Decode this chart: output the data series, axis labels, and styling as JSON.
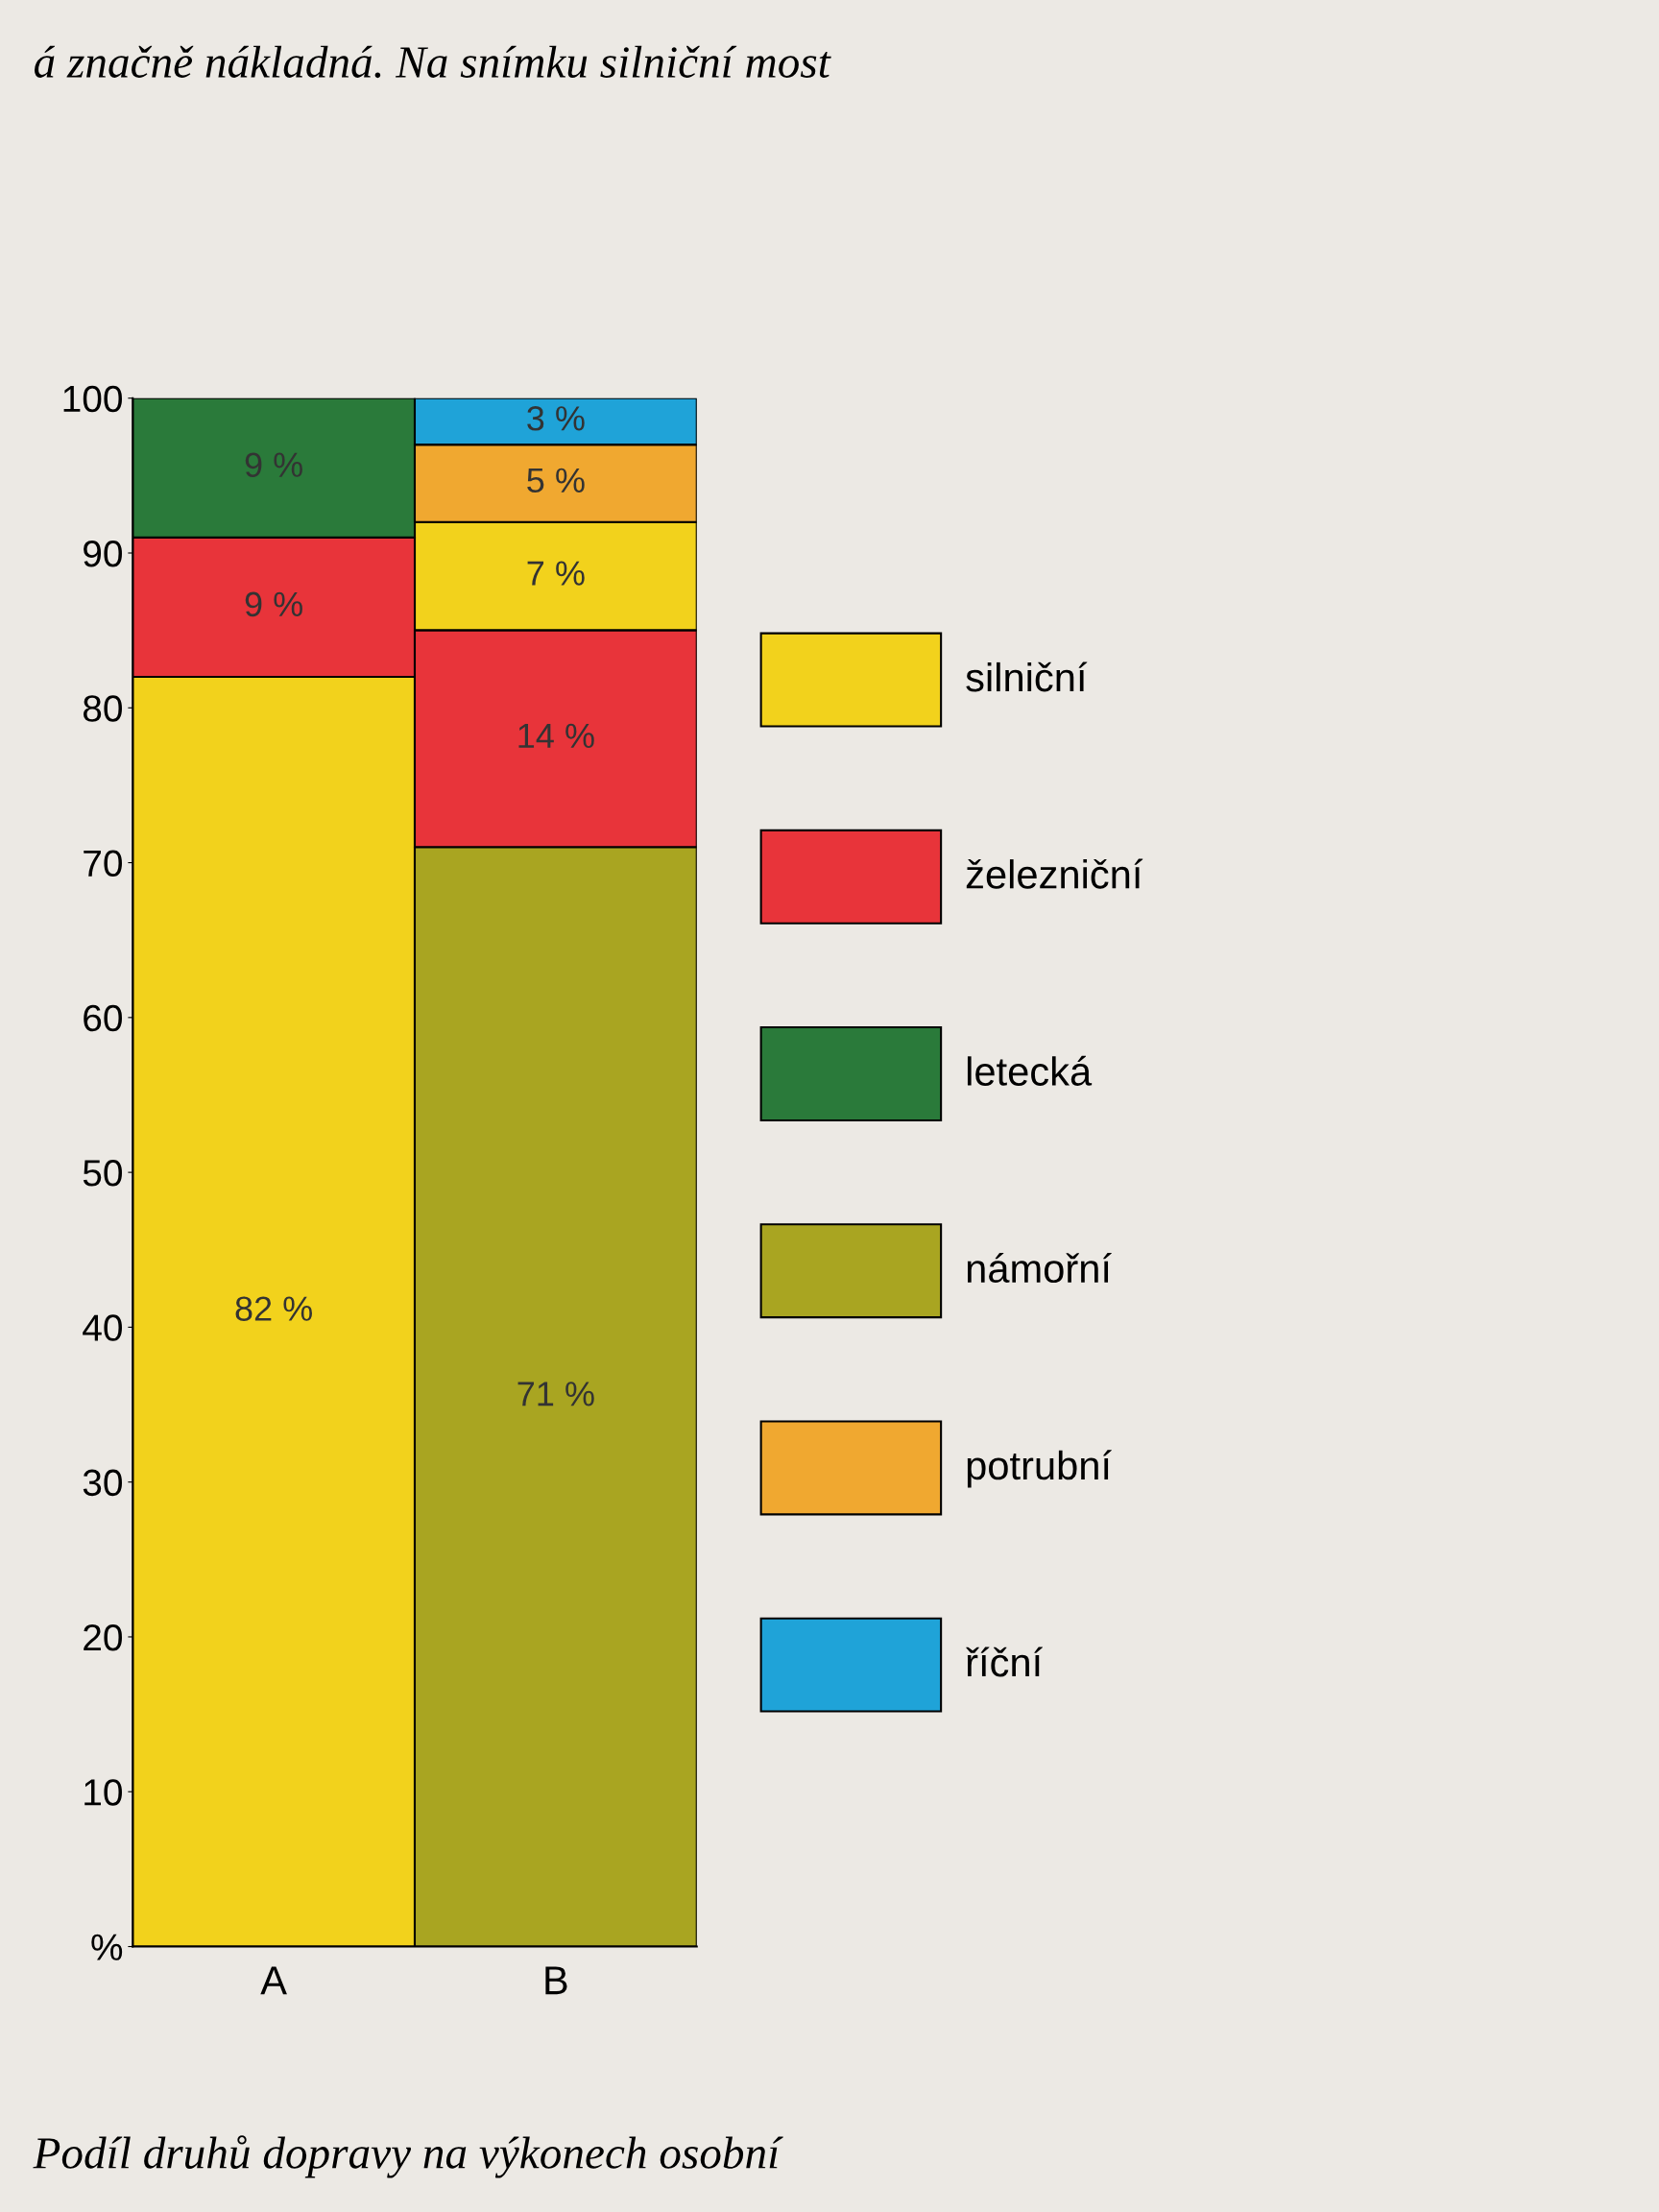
{
  "chart_data": {
    "type": "bar",
    "categories": [
      "A",
      "B"
    ],
    "series": [
      {
        "name": "silniční",
        "color": "#f2d21c",
        "values": [
          82,
          7
        ],
        "base": [
          0,
          85
        ],
        "value_labels": [
          "82 %",
          "7 %"
        ]
      },
      {
        "name": "železniční",
        "color": "#e8343a",
        "values": [
          9,
          14
        ],
        "base": [
          82,
          71
        ],
        "value_labels": [
          "9 %",
          "14 %"
        ]
      },
      {
        "name": "letecká",
        "color": "#2a7a3a",
        "values": [
          9,
          null
        ],
        "base": [
          91,
          null
        ],
        "value_labels": [
          "9 %",
          null
        ]
      },
      {
        "name": "námořní",
        "color": "#a9a521",
        "values": [
          null,
          71
        ],
        "base": [
          null,
          0
        ],
        "value_labels": [
          null,
          "71 %"
        ]
      },
      {
        "name": "potrubní",
        "color": "#f0a830",
        "values": [
          null,
          5
        ],
        "base": [
          null,
          92
        ],
        "value_labels": [
          null,
          "5 %"
        ]
      },
      {
        "name": "říční",
        "color": "#1fa3d8",
        "values": [
          null,
          3
        ],
        "base": [
          null,
          97
        ],
        "value_labels": [
          null,
          "3 %"
        ]
      }
    ],
    "ylim": [
      0,
      100
    ],
    "yticks": [
      {
        "value": 0,
        "label": "%"
      },
      10,
      20,
      30,
      40,
      50,
      60,
      70,
      80,
      90,
      100
    ],
    "grid": false,
    "legend": "right",
    "annotations": [
      "á značně nákladná. Na snímku silniční most",
      "Podíl druhů dopravy na výkonech osobní"
    ]
  }
}
